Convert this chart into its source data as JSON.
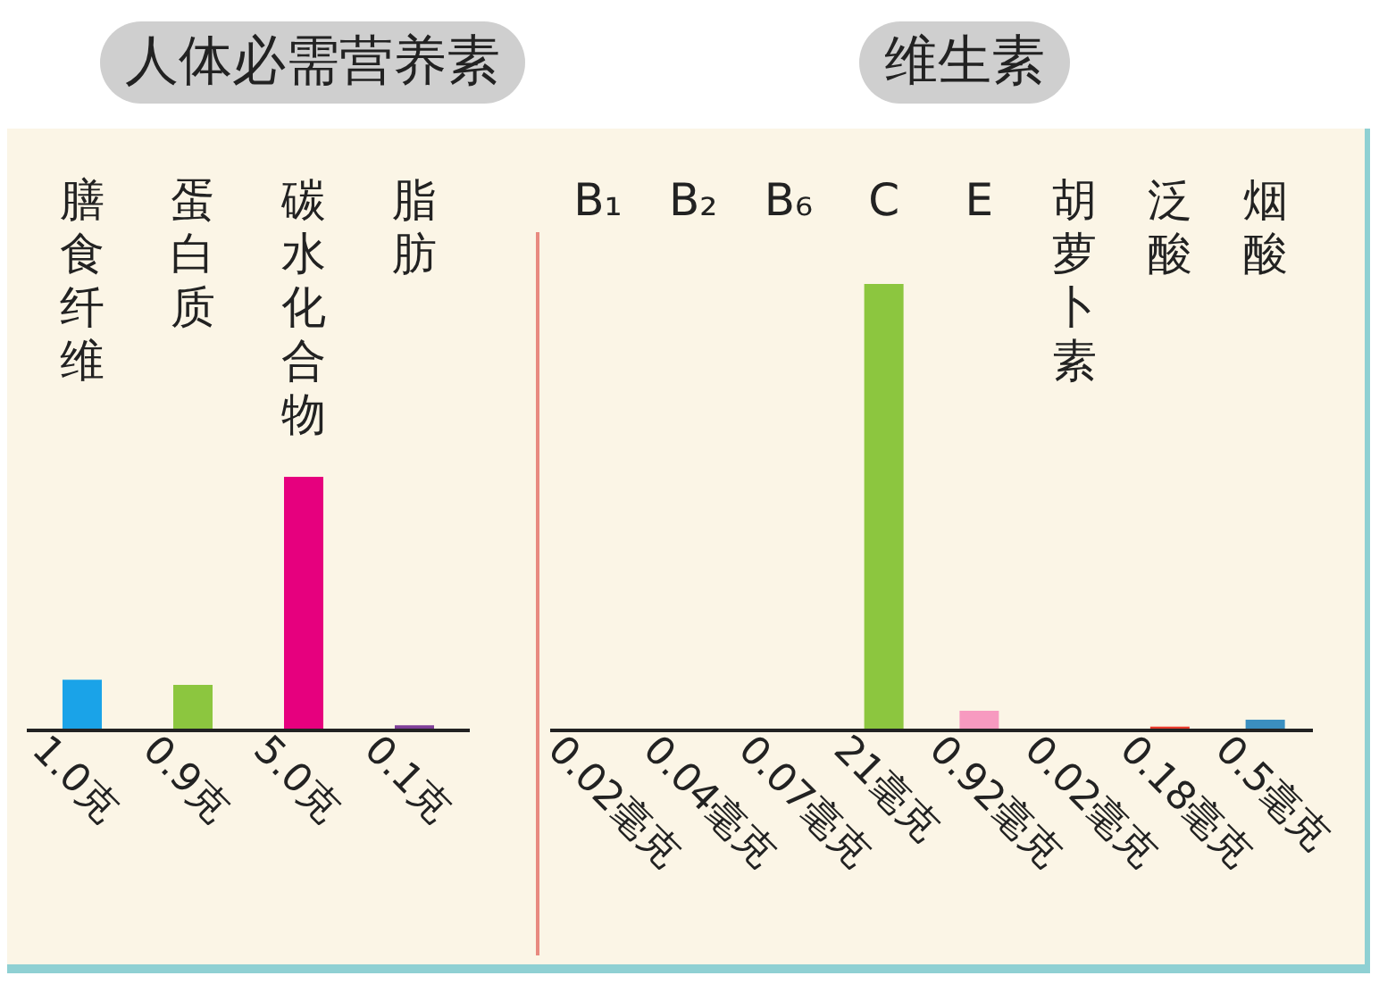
{
  "chart_data": [
    {
      "type": "bar",
      "title": "人体必需营养素",
      "categories": [
        "膳食纤维",
        "蛋白质",
        "碳水化合物",
        "脂肪"
      ],
      "values": [
        1.0,
        0.9,
        5.0,
        0.1
      ],
      "colors": [
        "#1aa3e8",
        "#8cc63f",
        "#e6007e",
        "#7f3f98"
      ],
      "value_labels": [
        "1.0克",
        "0.9克",
        "5.0克",
        "0.1克"
      ]
    },
    {
      "type": "bar",
      "title": "维生素",
      "categories": [
        "B₁",
        "B₂",
        "B₆",
        "C",
        "E",
        "胡萝卜素",
        "泛酸",
        "烟酸"
      ],
      "values": [
        0.02,
        0.04,
        0.07,
        21,
        0.92,
        0.02,
        0.18,
        0.5
      ],
      "colors": [
        "#e8a51c",
        "#8e5fb5",
        "#e0207e",
        "#8cc63f",
        "#f79ac0",
        "#22a052",
        "#e8392b",
        "#3b8fc0"
      ],
      "value_labels": [
        "0.02毫克",
        "0.04毫克",
        "0.07毫克",
        "21毫克",
        "0.92毫克",
        "0.02毫克",
        "0.18毫克",
        "0.5毫克"
      ]
    }
  ]
}
